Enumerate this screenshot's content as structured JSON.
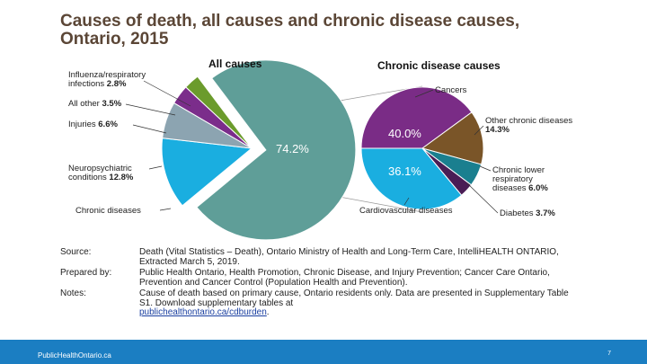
{
  "title": "Causes of death, all causes and chronic disease causes, Ontario, 2015",
  "chart_data": [
    {
      "type": "pie",
      "title": "All causes",
      "categories": [
        "Chronic diseases",
        "Neuropsychiatric conditions",
        "Injuries",
        "All other",
        "Influenza/respiratory infections"
      ],
      "values": [
        74.2,
        12.8,
        6.6,
        3.5,
        2.8
      ],
      "value_labels": [
        "74.2%",
        "12.8%",
        "6.6%",
        "3.5%",
        "2.8%"
      ],
      "colors": [
        "#5f9e98",
        "#1aaee0",
        "#8ca4b1",
        "#7b2d8b",
        "#6b9b2c"
      ]
    },
    {
      "type": "pie",
      "title": "Chronic disease causes",
      "categories": [
        "Cancers",
        "Other chronic diseases",
        "Chronic lower respiratory diseases",
        "Diabetes",
        "Cardiovascular diseases"
      ],
      "values": [
        40.0,
        14.3,
        6.0,
        3.7,
        36.1
      ],
      "value_labels": [
        "40.0%",
        "14.3%",
        "6.0%",
        "3.7%",
        "36.1%"
      ],
      "colors": [
        "#7a2c86",
        "#7a5528",
        "#1a7f8f",
        "#4a1d55",
        "#1aaee0"
      ]
    }
  ],
  "notes": [
    {
      "label": "Source:",
      "text": "Death (Vital Statistics – Death), Ontario Ministry of Health and Long-Term Care, IntelliHEALTH ONTARIO, Extracted March 5, 2019."
    },
    {
      "label": "Prepared by:",
      "text": "Public Health Ontario, Health Promotion, Chronic Disease, and Injury Prevention; Cancer Care Ontario, Prevention and Cancer Control (Population Health and Prevention)."
    },
    {
      "label": "Notes:",
      "text": "Cause of death based on primary cause, Ontario residents only. Data are presented in Supplementary Table S1. Download supplementary tables at",
      "link": "publichealthontario.ca/cdburden",
      "end": "."
    }
  ],
  "footer": {
    "site": "PublicHealthOntario.ca",
    "page": "7"
  }
}
